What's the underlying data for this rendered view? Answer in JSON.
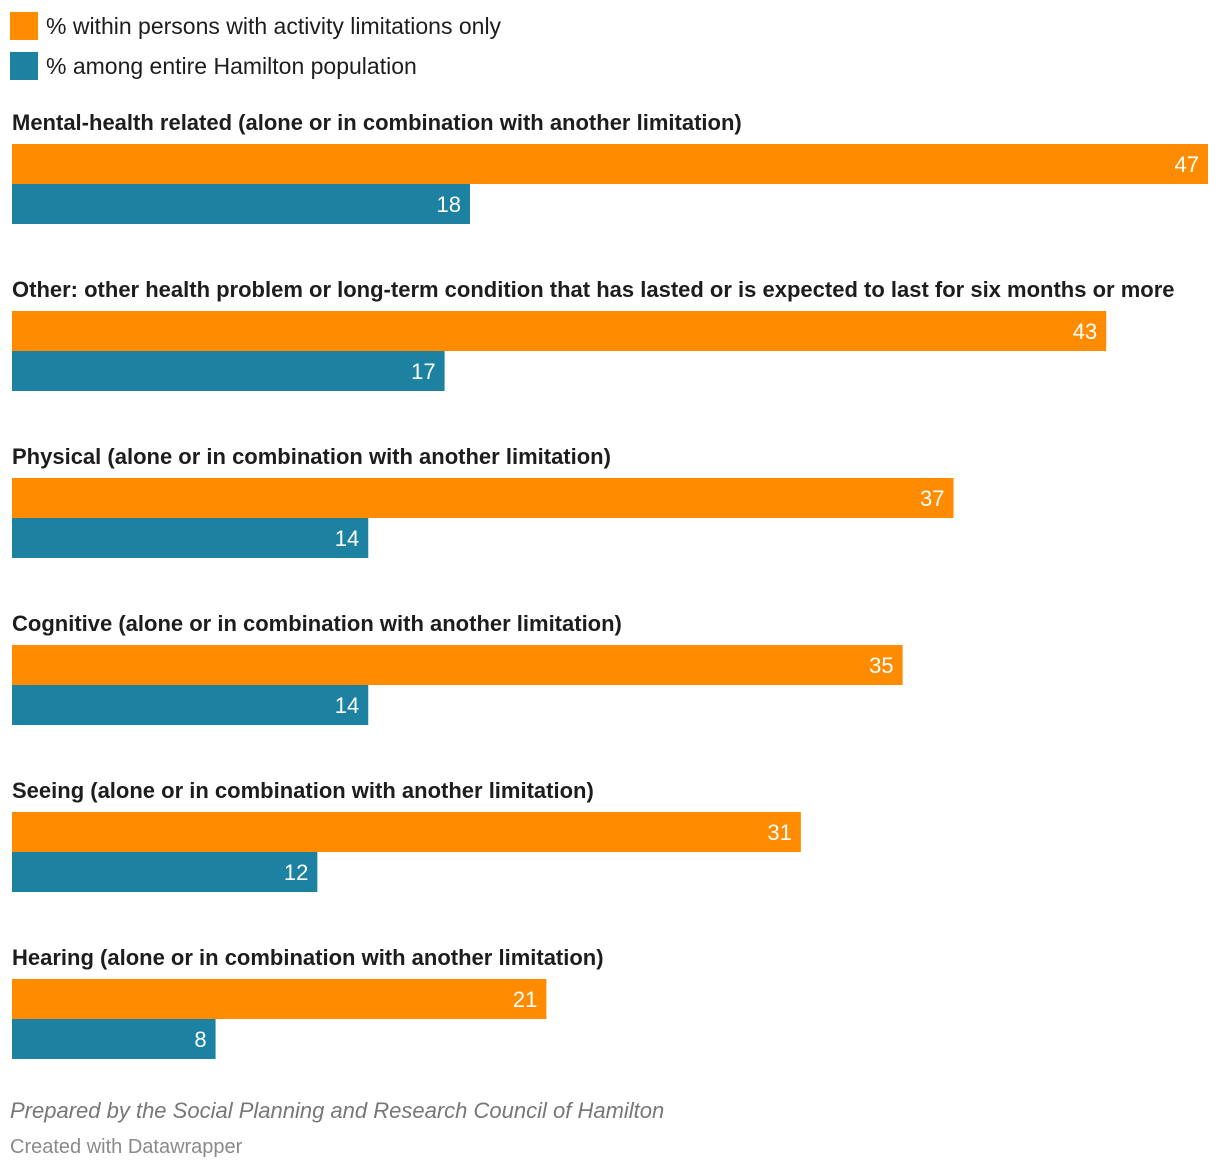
{
  "colors": {
    "series_1": "#ff8c00",
    "series_2": "#1d81a2",
    "label_text": "#1d1d1d",
    "value_text": "#ffffff"
  },
  "chart_data": {
    "type": "bar",
    "orientation": "horizontal",
    "grouped": true,
    "categories": [
      "Mental-health related (alone or in combination with another limitation)",
      "Other: other health problem or long-term condition that has lasted or is expected to last for six months or more",
      "Physical (alone or in combination with another limitation)",
      "Cognitive (alone or in combination with another limitation)",
      "Seeing (alone or in combination with another limitation)",
      "Hearing (alone or in combination with another limitation)"
    ],
    "series": [
      {
        "name": "% within persons with activity limitations only",
        "values": [
          47,
          43,
          37,
          35,
          31,
          21
        ]
      },
      {
        "name": "% among entire Hamilton population",
        "values": [
          18,
          17,
          14,
          14,
          12,
          8
        ]
      }
    ],
    "xlim": [
      0,
      47
    ],
    "grid": false,
    "legend_position": "top-left",
    "data_labels": true
  },
  "footer": {
    "source": "Prepared by the Social Planning and Research Council of Hamilton",
    "credit": "Created with Datawrapper"
  }
}
